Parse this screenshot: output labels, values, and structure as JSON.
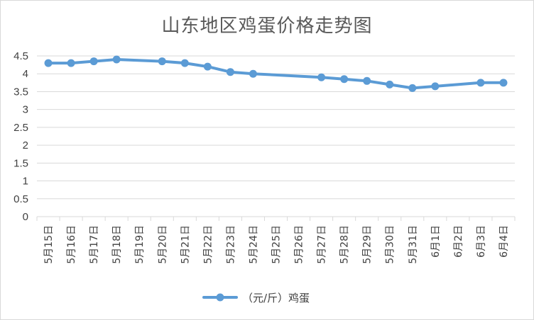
{
  "chart_data": {
    "type": "line",
    "title": "山东地区鸡蛋价格走势图",
    "xlabel": "",
    "ylabel": "",
    "categories": [
      "5月15日",
      "5月16日",
      "5月17日",
      "5月18日",
      "5月19日",
      "5月20日",
      "5月21日",
      "5月22日",
      "5月23日",
      "5月24日",
      "5月25日",
      "5月26日",
      "5月27日",
      "5月28日",
      "5月29日",
      "5月30日",
      "5月31日",
      "6月1日",
      "6月2日",
      "6月3日",
      "6月4日"
    ],
    "series": [
      {
        "name": "（元/斤）鸡蛋",
        "color": "#5b9bd5",
        "values": [
          4.3,
          4.3,
          4.35,
          4.4,
          null,
          4.35,
          4.3,
          4.2,
          4.05,
          4.0,
          null,
          null,
          3.9,
          3.85,
          3.8,
          3.7,
          3.6,
          3.65,
          null,
          3.75,
          3.75
        ]
      }
    ],
    "ylim": [
      0,
      4.5
    ],
    "yticks": [
      "0",
      "0.5",
      "1",
      "1.5",
      "2",
      "2.5",
      "3",
      "3.5",
      "4",
      "4.5"
    ],
    "grid": true,
    "legend_position": "bottom"
  }
}
